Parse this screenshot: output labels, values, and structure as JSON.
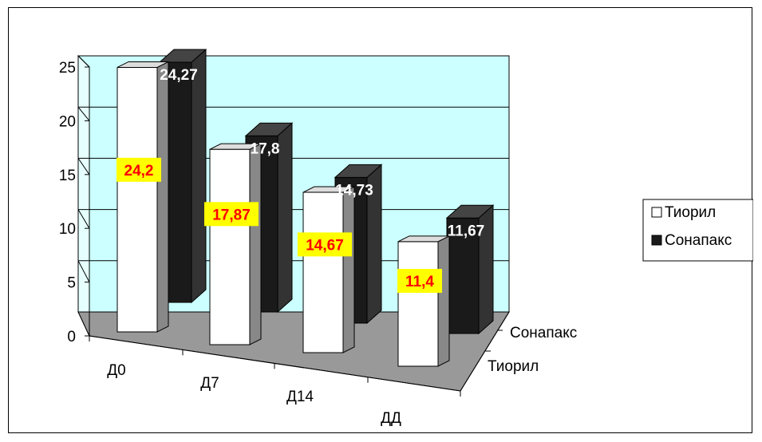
{
  "chart_data": {
    "type": "bar",
    "variant": "3d-clustered-depth",
    "categories": [
      "Д0",
      "Д7",
      "Д14",
      "ДД"
    ],
    "series": [
      {
        "name": "Тиорил",
        "values": [
          24.2,
          17.87,
          14.67,
          11.4
        ],
        "labels": [
          "24,2",
          "17,87",
          "14,67",
          "11,4"
        ],
        "color": "#ffffff",
        "label_color": "#ff0000",
        "label_background": "#ffff00"
      },
      {
        "name": "Сонапакс",
        "values": [
          24.27,
          17.8,
          14.73,
          11.67
        ],
        "labels": [
          "24,27",
          "17,8",
          "14,73",
          "11,67"
        ],
        "color": "#1a1a1a",
        "label_color": "#ffffff"
      }
    ],
    "depth_labels": [
      "Сонапакс",
      "Тиорил"
    ],
    "y_ticks": [
      "0",
      "5",
      "10",
      "15",
      "20",
      "25"
    ],
    "ylim": [
      0,
      25
    ],
    "legend": {
      "position": "right",
      "entries": [
        "Тиорил",
        "Сонапакс"
      ]
    },
    "grid": true,
    "colors": {
      "wall": "#ccffff",
      "floor": "#999999",
      "back_bar_side": "#333333",
      "front_bar_side": "#888888"
    }
  }
}
